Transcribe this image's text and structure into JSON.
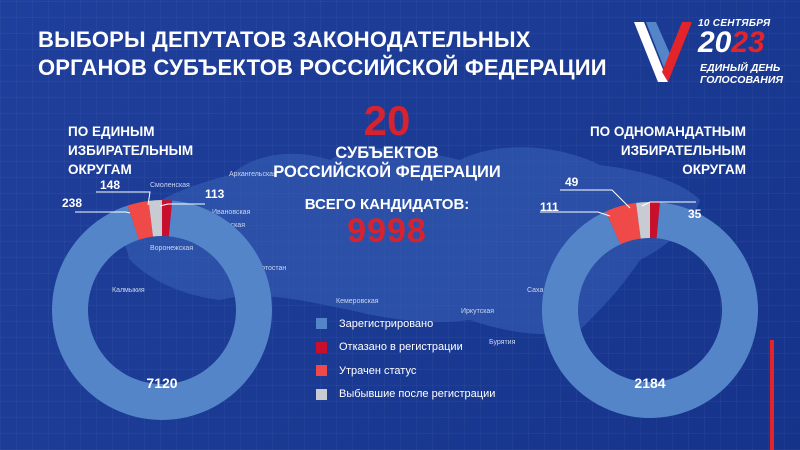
{
  "header": {
    "title_line1": "ВЫБОРЫ ДЕПУТАТОВ ЗАКОНОДАТЕЛЬНЫХ",
    "title_line2": "ОРГАНОВ СУБЪЕКТОВ РОССИЙСКОЙ ФЕДЕРАЦИИ"
  },
  "logo": {
    "date": "10 СЕНТЯБРЯ",
    "year_prefix": "20",
    "year_suffix": "23",
    "line1": "ЕДИНЫЙ ДЕНЬ",
    "line2": "ГОЛОСОВАНИЯ"
  },
  "summary": {
    "subjects_count": "20",
    "subjects_line1": "СУБЪЕКТОВ",
    "subjects_line2": "РОССИЙСКОЙ ФЕДЕРАЦИИ",
    "total_label": "ВСЕГО КАНДИДАТОВ:",
    "total_value": "9998"
  },
  "map_labels": [
    "Смоленская",
    "Архангельская",
    "Ивановская",
    "Камирская",
    "Башкортостан",
    "Калмыкия",
    "Кемеровская",
    "Иркутская",
    "Бурятия",
    "Саха (Якутия)",
    "Воронежская"
  ],
  "colors": {
    "registered": "#5585c9",
    "refused": "#c8102e",
    "lost": "#ef4a48",
    "withdrawn": "#c8ccd2",
    "background": "#1f3f9c"
  },
  "chart_data": [
    {
      "type": "pie",
      "title": "ПО ЕДИНЫМ ИЗБИРАТЕЛЬНЫМ ОКРУГАМ",
      "title_lines": [
        "ПО ЕДИНЫМ",
        "ИЗБИРАТЕЛЬНЫМ",
        "ОКРУГАМ"
      ],
      "categories": [
        "Зарегистрировано",
        "Отказано в регистрации",
        "Утрачен статус",
        "Выбывшие после регистрации"
      ],
      "values": [
        7120,
        113,
        238,
        148
      ],
      "labels": [
        "7120",
        "113",
        "238",
        "148"
      ]
    },
    {
      "type": "pie",
      "title": "ПО ОДНОМАНДАТНЫМ ИЗБИРАТЕЛЬНЫМ ОКРУГАМ",
      "title_lines": [
        "ПО ОДНОМАНДАТНЫМ",
        "ИЗБИРАТЕЛЬНЫМ",
        "ОКРУГАМ"
      ],
      "categories": [
        "Зарегистрировано",
        "Отказано в регистрации",
        "Утрачен статус",
        "Выбывшие после регистрации"
      ],
      "values": [
        2184,
        35,
        111,
        49
      ],
      "labels": [
        "2184",
        "35",
        "111",
        "49"
      ]
    }
  ],
  "legend": [
    {
      "label": "Зарегистрировано",
      "color": "#5585c9"
    },
    {
      "label": "Отказано в регистрации",
      "color": "#c8102e"
    },
    {
      "label": "Утрачен статус",
      "color": "#ef4a48"
    },
    {
      "label": "Выбывшие после регистрации",
      "color": "#c8ccd2"
    }
  ]
}
